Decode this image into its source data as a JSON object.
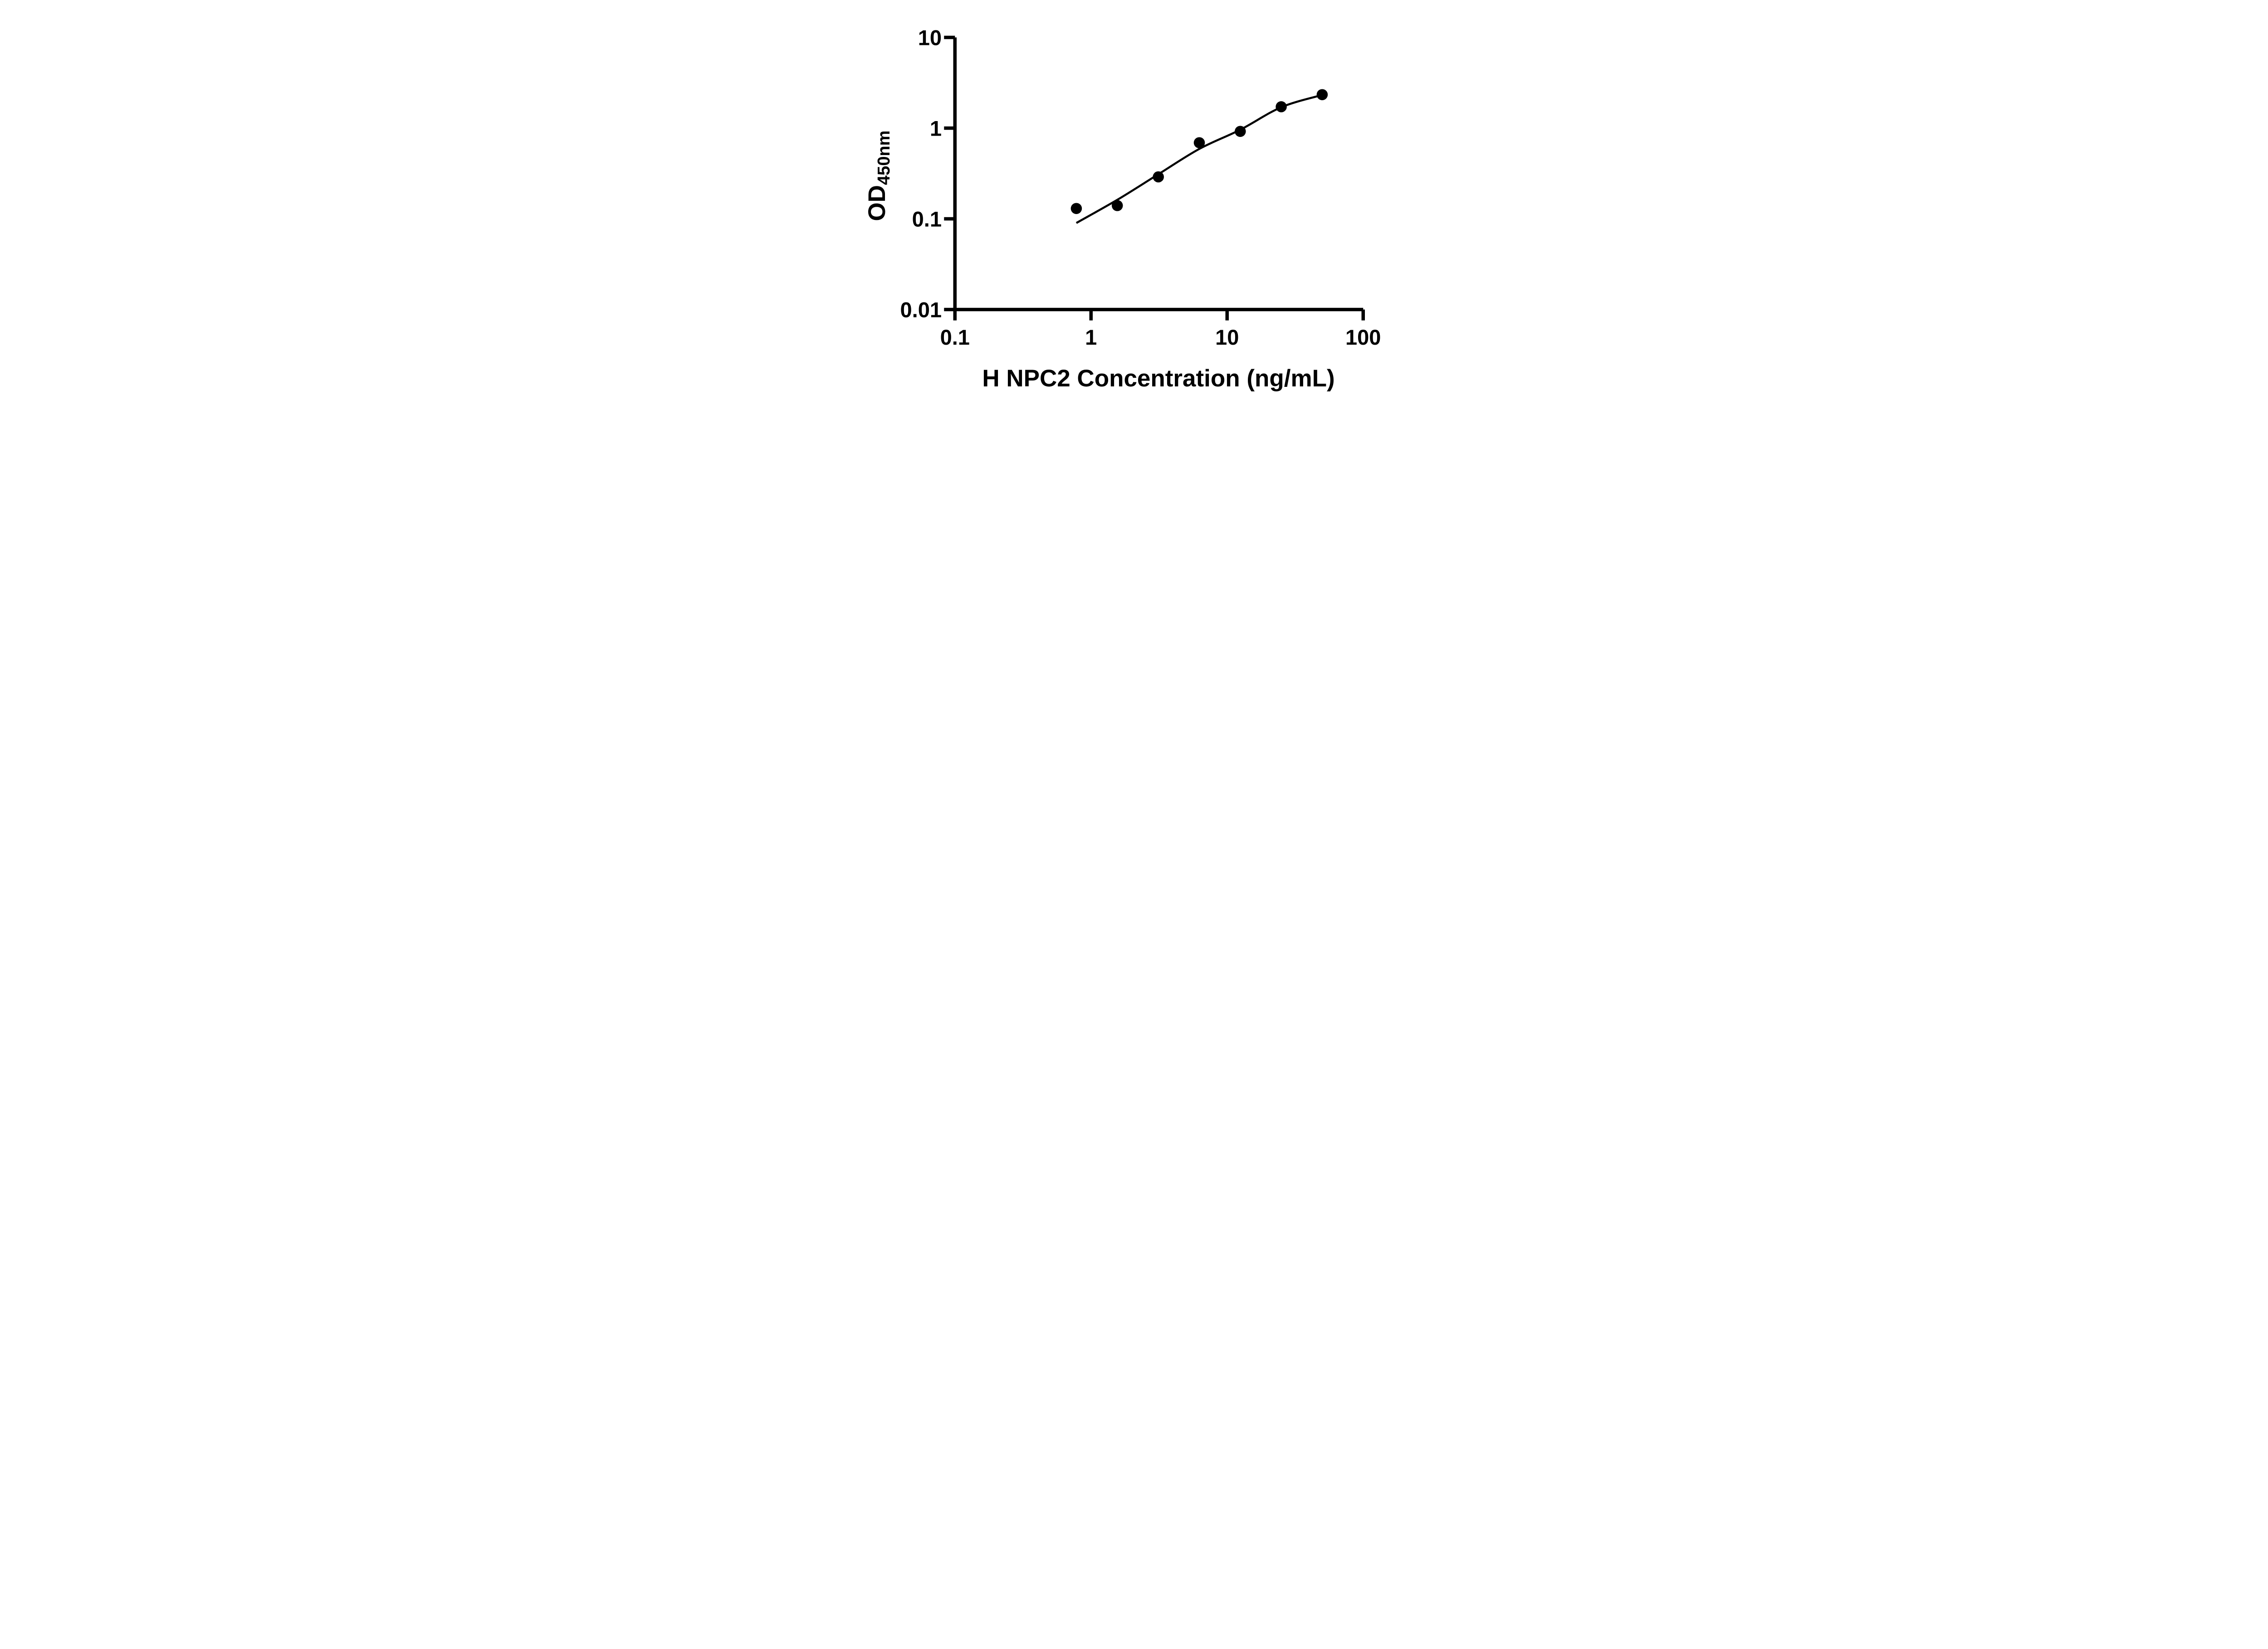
{
  "figure": {
    "background": "#ffffff",
    "ink_color": "#000000"
  },
  "chart_data": {
    "type": "scatter",
    "title": "",
    "xlabel": "H NPC2 Concentration (ng/mL)",
    "ylabel_main": "OD",
    "ylabel_sub": "450nm",
    "x_scale": "log",
    "y_scale": "log",
    "xlim": [
      0.1,
      100
    ],
    "ylim": [
      0.01,
      10
    ],
    "grid": false,
    "legend": "none",
    "marker": {
      "shape": "circle",
      "color": "#000000"
    },
    "curve_color": "#000000",
    "x_ticks": [
      {
        "value": 0.1,
        "label": "0.1"
      },
      {
        "value": 1,
        "label": "1"
      },
      {
        "value": 10,
        "label": "10"
      },
      {
        "value": 100,
        "label": "100"
      }
    ],
    "y_ticks": [
      {
        "value": 10,
        "label": "10"
      },
      {
        "value": 1,
        "label": "1"
      },
      {
        "value": 0.1,
        "label": "0.1"
      },
      {
        "value": 0.01,
        "label": "0.01"
      }
    ],
    "points": [
      {
        "x": 0.78,
        "od": 0.13
      },
      {
        "x": 1.56,
        "od": 0.14
      },
      {
        "x": 3.125,
        "od": 0.29
      },
      {
        "x": 6.25,
        "od": 0.69
      },
      {
        "x": 12.5,
        "od": 0.92
      },
      {
        "x": 25,
        "od": 1.72
      },
      {
        "x": 50,
        "od": 2.34
      }
    ],
    "fit_curve": [
      [
        0.78,
        0.09
      ],
      [
        1.56,
        0.162
      ],
      [
        3.125,
        0.31
      ],
      [
        6.25,
        0.59
      ],
      [
        12.5,
        0.96
      ],
      [
        25,
        1.7
      ],
      [
        50,
        2.32
      ]
    ]
  }
}
